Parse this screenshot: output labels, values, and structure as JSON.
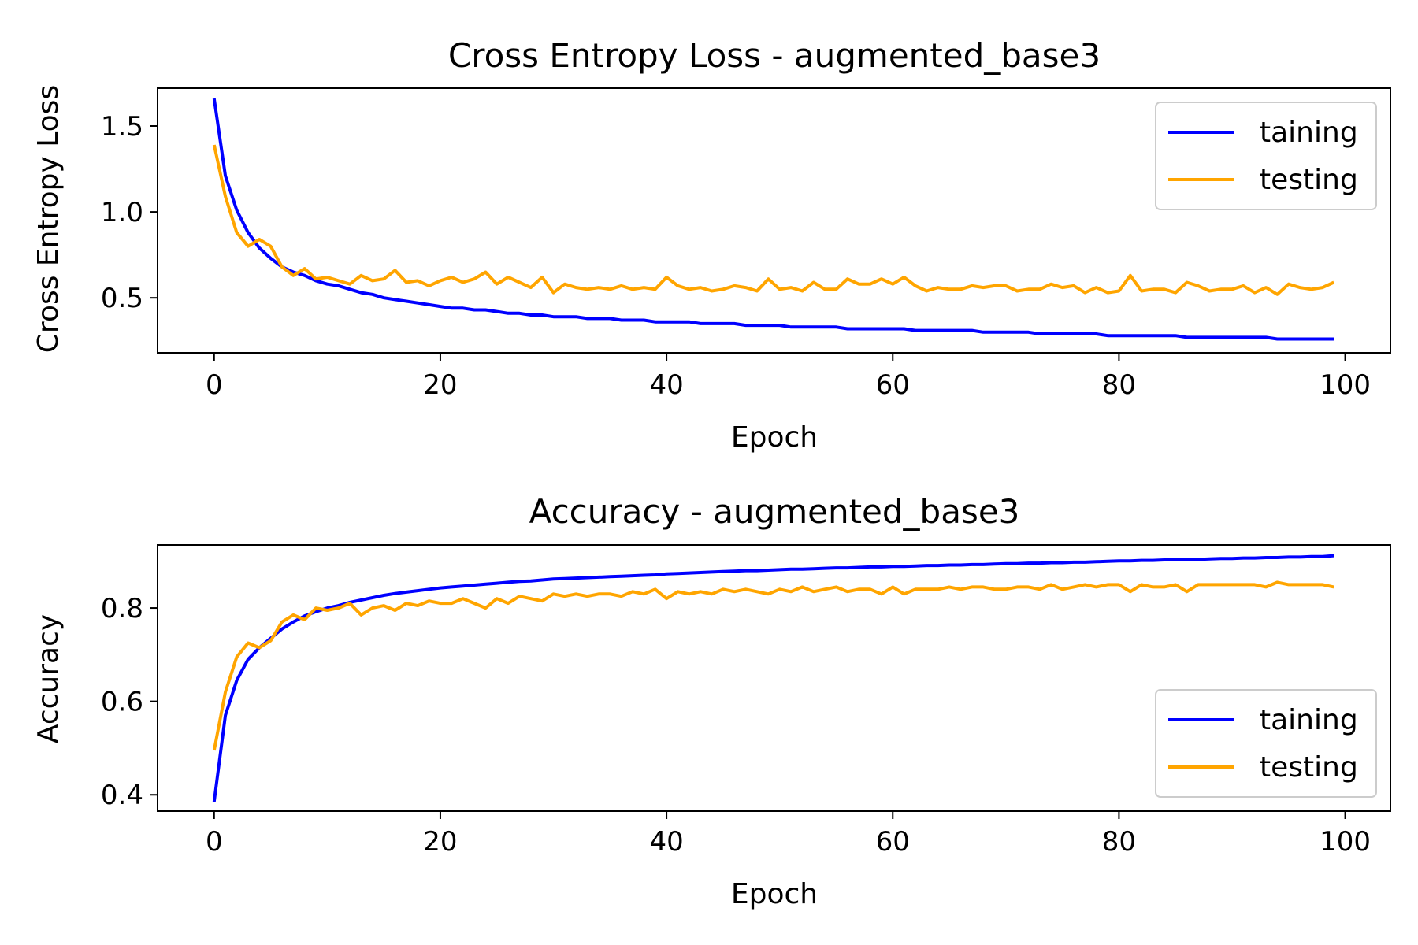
{
  "chart_data": [
    {
      "type": "line",
      "title": "Cross Entropy Loss - augmented_base3",
      "xlabel": "Epoch",
      "ylabel": "Cross Entropy Loss",
      "xlim": [
        -5,
        104
      ],
      "ylim": [
        0.18,
        1.72
      ],
      "xticks": [
        0,
        20,
        40,
        60,
        80,
        100
      ],
      "yticks": [
        0.5,
        1.0,
        1.5
      ],
      "ytick_labels": [
        "0.5",
        "1.0",
        "1.5"
      ],
      "legend_position": "upper right",
      "colors": {
        "taining": "#0000ff",
        "testing": "#ffa500"
      },
      "x": [
        0,
        1,
        2,
        3,
        4,
        5,
        6,
        7,
        8,
        9,
        10,
        11,
        12,
        13,
        14,
        15,
        16,
        17,
        18,
        19,
        20,
        21,
        22,
        23,
        24,
        25,
        26,
        27,
        28,
        29,
        30,
        31,
        32,
        33,
        34,
        35,
        36,
        37,
        38,
        39,
        40,
        41,
        42,
        43,
        44,
        45,
        46,
        47,
        48,
        49,
        50,
        51,
        52,
        53,
        54,
        55,
        56,
        57,
        58,
        59,
        60,
        61,
        62,
        63,
        64,
        65,
        66,
        67,
        68,
        69,
        70,
        71,
        72,
        73,
        74,
        75,
        76,
        77,
        78,
        79,
        80,
        81,
        82,
        83,
        84,
        85,
        86,
        87,
        88,
        89,
        90,
        91,
        92,
        93,
        94,
        95,
        96,
        97,
        98,
        99
      ],
      "series": [
        {
          "name": "taining",
          "values": [
            1.66,
            1.21,
            1.01,
            0.88,
            0.79,
            0.73,
            0.68,
            0.65,
            0.63,
            0.6,
            0.58,
            0.57,
            0.55,
            0.53,
            0.52,
            0.5,
            0.49,
            0.48,
            0.47,
            0.46,
            0.45,
            0.44,
            0.44,
            0.43,
            0.43,
            0.42,
            0.41,
            0.41,
            0.4,
            0.4,
            0.39,
            0.39,
            0.39,
            0.38,
            0.38,
            0.38,
            0.37,
            0.37,
            0.37,
            0.36,
            0.36,
            0.36,
            0.36,
            0.35,
            0.35,
            0.35,
            0.35,
            0.34,
            0.34,
            0.34,
            0.34,
            0.33,
            0.33,
            0.33,
            0.33,
            0.33,
            0.32,
            0.32,
            0.32,
            0.32,
            0.32,
            0.32,
            0.31,
            0.31,
            0.31,
            0.31,
            0.31,
            0.31,
            0.3,
            0.3,
            0.3,
            0.3,
            0.3,
            0.29,
            0.29,
            0.29,
            0.29,
            0.29,
            0.29,
            0.28,
            0.28,
            0.28,
            0.28,
            0.28,
            0.28,
            0.28,
            0.27,
            0.27,
            0.27,
            0.27,
            0.27,
            0.27,
            0.27,
            0.27,
            0.26,
            0.26,
            0.26,
            0.26,
            0.26,
            0.26
          ]
        },
        {
          "name": "testing",
          "values": [
            1.39,
            1.09,
            0.88,
            0.8,
            0.84,
            0.8,
            0.68,
            0.63,
            0.67,
            0.61,
            0.62,
            0.6,
            0.58,
            0.63,
            0.6,
            0.61,
            0.66,
            0.59,
            0.6,
            0.57,
            0.6,
            0.62,
            0.59,
            0.61,
            0.65,
            0.58,
            0.62,
            0.59,
            0.56,
            0.62,
            0.53,
            0.58,
            0.56,
            0.55,
            0.56,
            0.55,
            0.57,
            0.55,
            0.56,
            0.55,
            0.62,
            0.57,
            0.55,
            0.56,
            0.54,
            0.55,
            0.57,
            0.56,
            0.54,
            0.61,
            0.55,
            0.56,
            0.54,
            0.59,
            0.55,
            0.55,
            0.61,
            0.58,
            0.58,
            0.61,
            0.58,
            0.62,
            0.57,
            0.54,
            0.56,
            0.55,
            0.55,
            0.57,
            0.56,
            0.57,
            0.57,
            0.54,
            0.55,
            0.55,
            0.58,
            0.56,
            0.57,
            0.53,
            0.56,
            0.53,
            0.54,
            0.63,
            0.54,
            0.55,
            0.55,
            0.53,
            0.59,
            0.57,
            0.54,
            0.55,
            0.55,
            0.57,
            0.53,
            0.56,
            0.52,
            0.58,
            0.56,
            0.55,
            0.56,
            0.59
          ]
        }
      ]
    },
    {
      "type": "line",
      "title": "Accuracy - augmented_base3",
      "xlabel": "Epoch",
      "ylabel": "Accuracy",
      "xlim": [
        -5,
        104
      ],
      "ylim": [
        0.365,
        0.935
      ],
      "xticks": [
        0,
        20,
        40,
        60,
        80,
        100
      ],
      "yticks": [
        0.4,
        0.6,
        0.8
      ],
      "ytick_labels": [
        "0.4",
        "0.6",
        "0.8"
      ],
      "legend_position": "lower right",
      "colors": {
        "taining": "#0000ff",
        "testing": "#ffa500"
      },
      "x": [
        0,
        1,
        2,
        3,
        4,
        5,
        6,
        7,
        8,
        9,
        10,
        11,
        12,
        13,
        14,
        15,
        16,
        17,
        18,
        19,
        20,
        21,
        22,
        23,
        24,
        25,
        26,
        27,
        28,
        29,
        30,
        31,
        32,
        33,
        34,
        35,
        36,
        37,
        38,
        39,
        40,
        41,
        42,
        43,
        44,
        45,
        46,
        47,
        48,
        49,
        50,
        51,
        52,
        53,
        54,
        55,
        56,
        57,
        58,
        59,
        60,
        61,
        62,
        63,
        64,
        65,
        66,
        67,
        68,
        69,
        70,
        71,
        72,
        73,
        74,
        75,
        76,
        77,
        78,
        79,
        80,
        81,
        82,
        83,
        84,
        85,
        86,
        87,
        88,
        89,
        90,
        91,
        92,
        93,
        94,
        95,
        96,
        97,
        98,
        99
      ],
      "series": [
        {
          "name": "taining",
          "values": [
            0.385,
            0.57,
            0.645,
            0.69,
            0.715,
            0.735,
            0.755,
            0.77,
            0.783,
            0.792,
            0.8,
            0.805,
            0.812,
            0.817,
            0.822,
            0.827,
            0.831,
            0.834,
            0.837,
            0.84,
            0.843,
            0.845,
            0.847,
            0.849,
            0.851,
            0.853,
            0.855,
            0.857,
            0.858,
            0.86,
            0.862,
            0.863,
            0.864,
            0.865,
            0.866,
            0.867,
            0.868,
            0.869,
            0.87,
            0.871,
            0.873,
            0.874,
            0.875,
            0.876,
            0.877,
            0.878,
            0.879,
            0.88,
            0.88,
            0.881,
            0.882,
            0.883,
            0.883,
            0.884,
            0.885,
            0.886,
            0.886,
            0.887,
            0.888,
            0.888,
            0.889,
            0.889,
            0.89,
            0.891,
            0.891,
            0.892,
            0.892,
            0.893,
            0.893,
            0.894,
            0.895,
            0.895,
            0.896,
            0.896,
            0.897,
            0.897,
            0.898,
            0.898,
            0.899,
            0.9,
            0.901,
            0.901,
            0.902,
            0.902,
            0.903,
            0.903,
            0.904,
            0.904,
            0.905,
            0.906,
            0.906,
            0.907,
            0.907,
            0.908,
            0.908,
            0.909,
            0.909,
            0.91,
            0.91,
            0.912
          ]
        },
        {
          "name": "testing",
          "values": [
            0.495,
            0.62,
            0.695,
            0.725,
            0.715,
            0.73,
            0.77,
            0.785,
            0.775,
            0.8,
            0.795,
            0.8,
            0.81,
            0.785,
            0.8,
            0.805,
            0.795,
            0.81,
            0.805,
            0.815,
            0.81,
            0.81,
            0.82,
            0.81,
            0.8,
            0.82,
            0.81,
            0.825,
            0.82,
            0.815,
            0.83,
            0.825,
            0.83,
            0.825,
            0.83,
            0.83,
            0.825,
            0.835,
            0.83,
            0.84,
            0.82,
            0.835,
            0.83,
            0.835,
            0.83,
            0.84,
            0.835,
            0.84,
            0.835,
            0.83,
            0.84,
            0.835,
            0.845,
            0.835,
            0.84,
            0.845,
            0.835,
            0.84,
            0.84,
            0.83,
            0.845,
            0.83,
            0.84,
            0.84,
            0.84,
            0.845,
            0.84,
            0.845,
            0.845,
            0.84,
            0.84,
            0.845,
            0.845,
            0.84,
            0.85,
            0.84,
            0.845,
            0.85,
            0.845,
            0.85,
            0.85,
            0.835,
            0.85,
            0.845,
            0.845,
            0.85,
            0.835,
            0.85,
            0.85,
            0.85,
            0.85,
            0.85,
            0.85,
            0.845,
            0.855,
            0.85,
            0.85,
            0.85,
            0.85,
            0.845
          ]
        }
      ]
    }
  ]
}
